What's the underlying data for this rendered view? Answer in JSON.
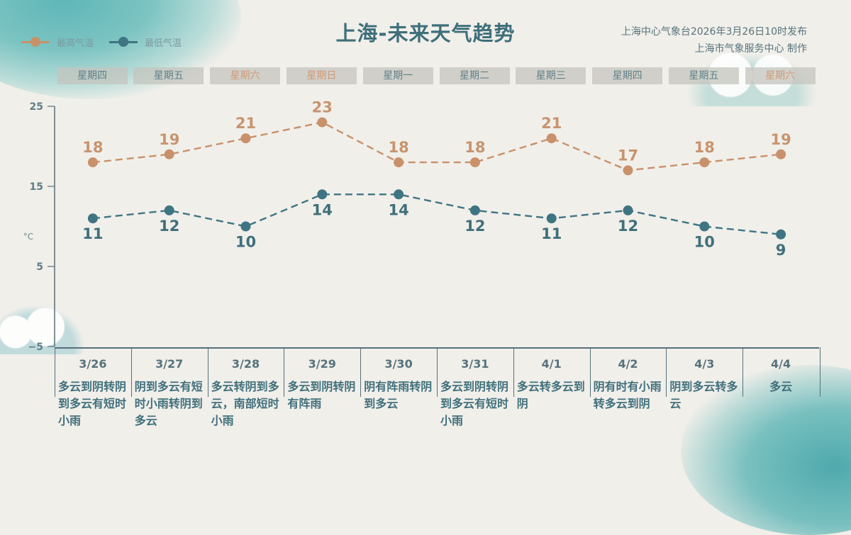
{
  "header": {
    "title": "上海-未来天气趋势",
    "publisher_line1": "上海中心气象台2026年3月26日10时发布",
    "publisher_line2": "上海市气象服务中心  制作"
  },
  "legend": {
    "high_label": "最高气温",
    "low_label": "最低气温"
  },
  "colors": {
    "high": "#c8916a",
    "low": "#3f7483",
    "title": "#3f6f7b",
    "weekend_text": "#cf9a76"
  },
  "weekdays": [
    {
      "label": "星期四",
      "weekend": false
    },
    {
      "label": "星期五",
      "weekend": false
    },
    {
      "label": "星期六",
      "weekend": true
    },
    {
      "label": "星期日",
      "weekend": true
    },
    {
      "label": "星期一",
      "weekend": false
    },
    {
      "label": "星期二",
      "weekend": false
    },
    {
      "label": "星期三",
      "weekend": false
    },
    {
      "label": "星期四",
      "weekend": false
    },
    {
      "label": "星期五",
      "weekend": false
    },
    {
      "label": "星期六",
      "weekend": true
    }
  ],
  "table": {
    "columns": [
      {
        "date": "3/26",
        "weather": "多云到阴转阴到多云有短时小雨"
      },
      {
        "date": "3/27",
        "weather": "阴到多云有短时小雨转阴到多云"
      },
      {
        "date": "3/28",
        "weather": "多云转阴到多云，南部短时小雨"
      },
      {
        "date": "3/29",
        "weather": "多云到阴转阴有阵雨"
      },
      {
        "date": "3/30",
        "weather": "阴有阵雨转阴到多云"
      },
      {
        "date": "3/31",
        "weather": "多云到阴转阴到多云有短时小雨"
      },
      {
        "date": "4/1",
        "weather": "多云转多云到阴"
      },
      {
        "date": "4/2",
        "weather": "阴有时有小雨转多云到阴"
      },
      {
        "date": "4/3",
        "weather": "阴到多云转多云"
      },
      {
        "date": "4/4",
        "weather": "多云"
      }
    ]
  },
  "chart_data": {
    "type": "line",
    "title": "上海-未来天气趋势",
    "xlabel": "",
    "ylabel": "°C",
    "categories": [
      "3/26",
      "3/27",
      "3/28",
      "3/29",
      "3/30",
      "3/31",
      "4/1",
      "4/2",
      "4/3",
      "4/4"
    ],
    "series": [
      {
        "name": "最高气温",
        "color": "#c8916a",
        "values": [
          18,
          19,
          21,
          23,
          18,
          18,
          21,
          17,
          18,
          19
        ]
      },
      {
        "name": "最低气温",
        "color": "#3f7483",
        "values": [
          11,
          12,
          10,
          14,
          14,
          12,
          11,
          12,
          10,
          9
        ]
      }
    ],
    "yticks": [
      25,
      15,
      5,
      -5
    ],
    "ylim": [
      -5,
      25
    ],
    "grid": false,
    "legend_position": "top-left",
    "line_style": "dashed",
    "data_labels": true
  }
}
